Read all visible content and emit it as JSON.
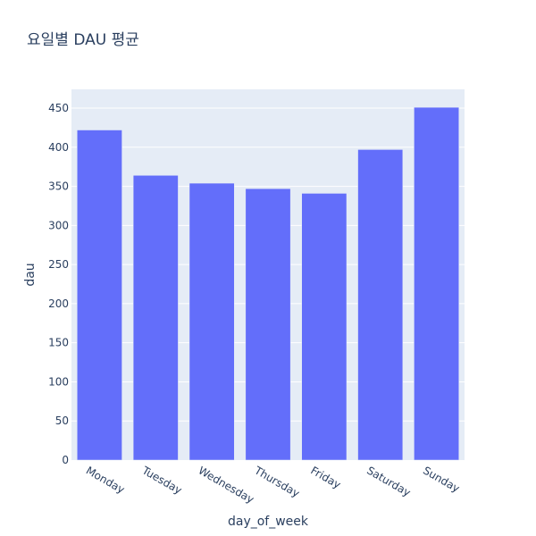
{
  "chart_data": {
    "type": "bar",
    "title": "요일별 DAU 평균",
    "xlabel": "day_of_week",
    "ylabel": "dau",
    "categories": [
      "Monday",
      "Tuesday",
      "Wednesday",
      "Thursday",
      "Friday",
      "Saturday",
      "Sunday"
    ],
    "values": [
      422,
      364,
      354,
      347,
      341,
      397,
      451
    ],
    "ylim": [
      0,
      474
    ],
    "yticks": [
      0,
      50,
      100,
      150,
      200,
      250,
      300,
      350,
      400,
      450
    ],
    "grid": true,
    "legend": "none",
    "colors": {
      "bar": "#636efa",
      "plot_background": "#e5ecf6",
      "grid": "#ffffff",
      "text": "#2a3f5f",
      "page_background": "#ffffff"
    }
  }
}
